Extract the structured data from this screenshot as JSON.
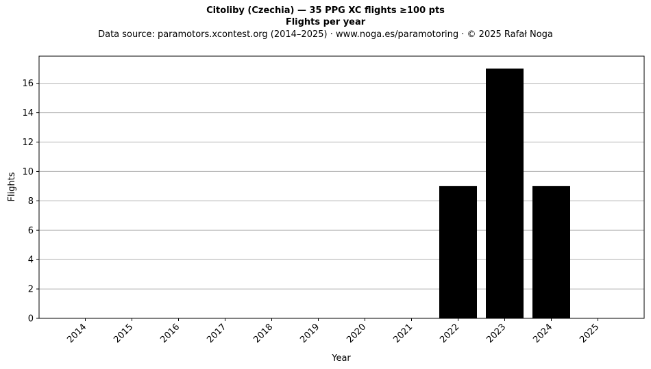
{
  "chart_data": {
    "type": "bar",
    "title": "Citoliby (Czechia)  —  35 PPG XC flights ≥100 pts",
    "subtitle": "Flights per year",
    "source_note": "Data source: paramotors.xcontest.org (2014–2025)  ·  www.noga.es/paramotoring  ·  © 2025 Rafał Noga",
    "xlabel": "Year",
    "ylabel": "Flights",
    "categories": [
      "2014",
      "2015",
      "2016",
      "2017",
      "2018",
      "2019",
      "2020",
      "2021",
      "2022",
      "2023",
      "2024",
      "2025"
    ],
    "values": [
      0,
      0,
      0,
      0,
      0,
      0,
      0,
      0,
      9,
      17,
      9,
      0
    ],
    "ylim": [
      0,
      17.85
    ],
    "yticks": [
      0,
      2,
      4,
      6,
      8,
      10,
      12,
      14,
      16
    ],
    "grid": "y",
    "bar_color": "#000000"
  }
}
